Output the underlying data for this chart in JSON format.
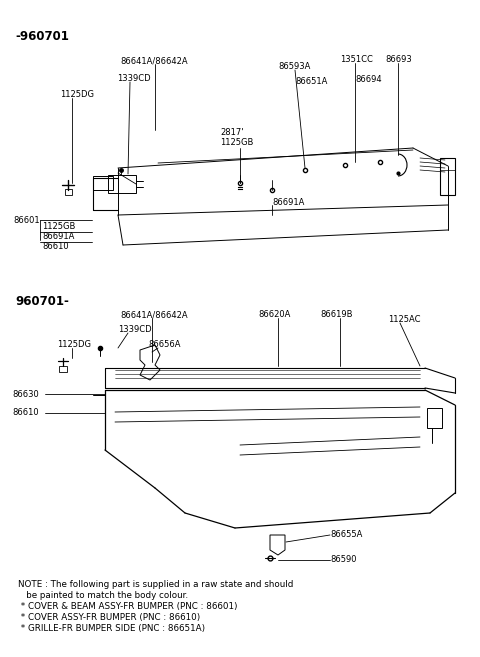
{
  "background_color": "#ffffff",
  "section1_label": "-960701",
  "section2_label": "960701-",
  "note_line1": "NOTE : The following part is supplied in a raw state and should",
  "note_line2": "   be painted to match the body colour.",
  "note_line3": " * COVER & BEAM ASSY-FR BUMPER (PNC : 86601)",
  "note_line4": " * COVER ASSY-FR BUMPER (PNC : 86610)",
  "note_line5": " * GRILLE-FR BUMPER SIDE (PNC : 86651A)"
}
